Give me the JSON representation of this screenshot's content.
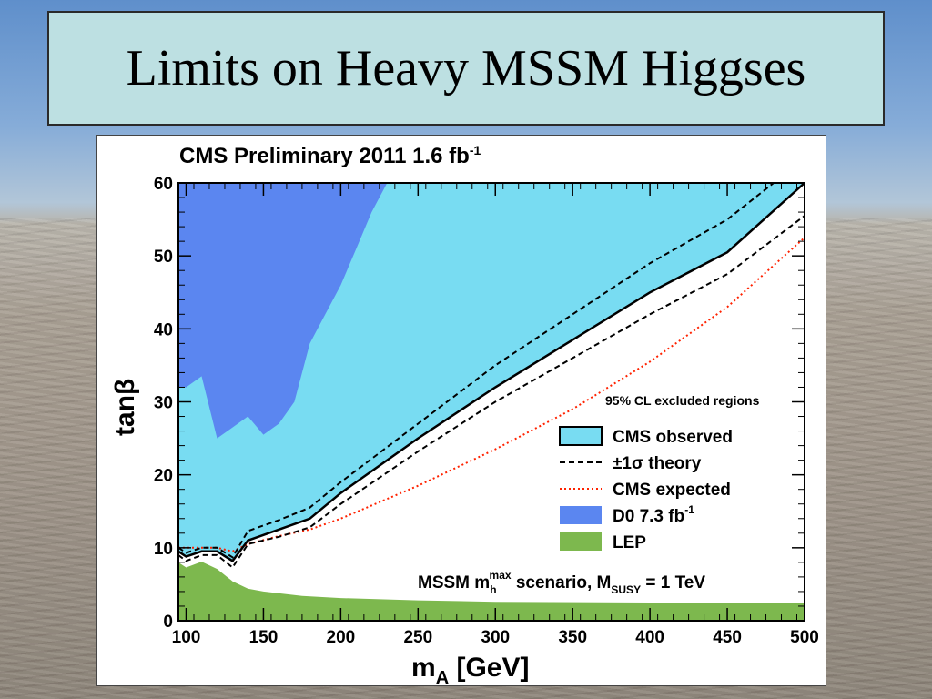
{
  "slide": {
    "title": "Limits on Heavy MSSM Higgses"
  },
  "colors": {
    "cms_observed": "#78dcf2",
    "d0": "#5b86f0",
    "lep": "#7db84e",
    "cms_expected": "#ff2200",
    "theory": "#000000"
  },
  "chart_data": {
    "type": "area",
    "title_main": "CMS Preliminary 2011 1.6 fb",
    "title_sup": "-1",
    "xlabel_main": "m",
    "xlabel_sub": "A",
    "xlabel_unit": " [GeV]",
    "ylabel": "tanβ",
    "xlim": [
      95,
      500
    ],
    "ylim": [
      0,
      60
    ],
    "xticks": [
      100,
      150,
      200,
      250,
      300,
      350,
      400,
      450,
      500
    ],
    "yticks": [
      0,
      10,
      20,
      30,
      40,
      50,
      60
    ],
    "annotation": "95% CL excluded regions",
    "scenario": {
      "prefix": "MSSM m",
      "m_sub": "h",
      "m_sup": "max",
      "middle": " scenario, M",
      "M_sub": "SUSY",
      "suffix": " = 1 TeV"
    },
    "legend": {
      "placement": "center-right",
      "entries": [
        {
          "key": "cms_observed",
          "label": "CMS observed",
          "sup": ""
        },
        {
          "key": "theory",
          "label": "±1σ theory",
          "sup": ""
        },
        {
          "key": "cms_expected",
          "label": "CMS expected",
          "sup": ""
        },
        {
          "key": "d0",
          "label": "D0 7.3 fb",
          "sup": "-1"
        },
        {
          "key": "lep",
          "label": "LEP",
          "sup": ""
        }
      ]
    },
    "series": [
      {
        "key": "cms_observed",
        "x": [
          95,
          100,
          110,
          120,
          130,
          140,
          160,
          180,
          200,
          250,
          300,
          350,
          400,
          450,
          500
        ],
        "y": [
          9.5,
          8.8,
          9.5,
          9.5,
          8.2,
          11,
          12.5,
          14,
          17.5,
          25,
          32,
          38.5,
          45,
          50.5,
          60
        ]
      },
      {
        "key": "theory_upper",
        "x": [
          95,
          100,
          110,
          120,
          130,
          140,
          160,
          180,
          200,
          250,
          300,
          350,
          400,
          450,
          480
        ],
        "y": [
          10,
          9.3,
          10,
          10,
          8.7,
          12.3,
          13.8,
          15.5,
          19,
          27,
          35,
          42,
          49,
          55,
          60
        ]
      },
      {
        "key": "theory_lower",
        "x": [
          95,
          100,
          110,
          120,
          130,
          140,
          160,
          180,
          200,
          250,
          300,
          350,
          400,
          450,
          500
        ],
        "y": [
          9,
          8.2,
          9,
          9,
          7.3,
          10.5,
          11.5,
          12.8,
          16,
          23.2,
          30,
          36,
          42,
          47.5,
          55.5
        ]
      },
      {
        "key": "cms_expected",
        "x": [
          95,
          100,
          110,
          120,
          130,
          140,
          160,
          180,
          200,
          250,
          300,
          350,
          400,
          450,
          500
        ],
        "y": [
          10,
          10,
          10,
          10,
          9.5,
          10.5,
          11.6,
          12.5,
          14,
          18.5,
          23.5,
          29,
          35.5,
          43,
          52.5
        ]
      },
      {
        "key": "d0",
        "x": [
          95,
          100,
          110,
          120,
          130,
          140,
          150,
          160,
          170,
          180,
          190,
          200,
          210,
          220,
          230
        ],
        "y": [
          32,
          32,
          33.5,
          25,
          26.5,
          28,
          25.5,
          27,
          30,
          38,
          42,
          46,
          51,
          56,
          60
        ]
      },
      {
        "key": "lep",
        "x": [
          95,
          100,
          110,
          120,
          130,
          140,
          150,
          175,
          200,
          250,
          300,
          400,
          500
        ],
        "y": [
          8,
          7.3,
          8.1,
          7.1,
          5.4,
          4.4,
          4.0,
          3.4,
          3.1,
          2.8,
          2.6,
          2.5,
          2.5
        ]
      }
    ]
  }
}
